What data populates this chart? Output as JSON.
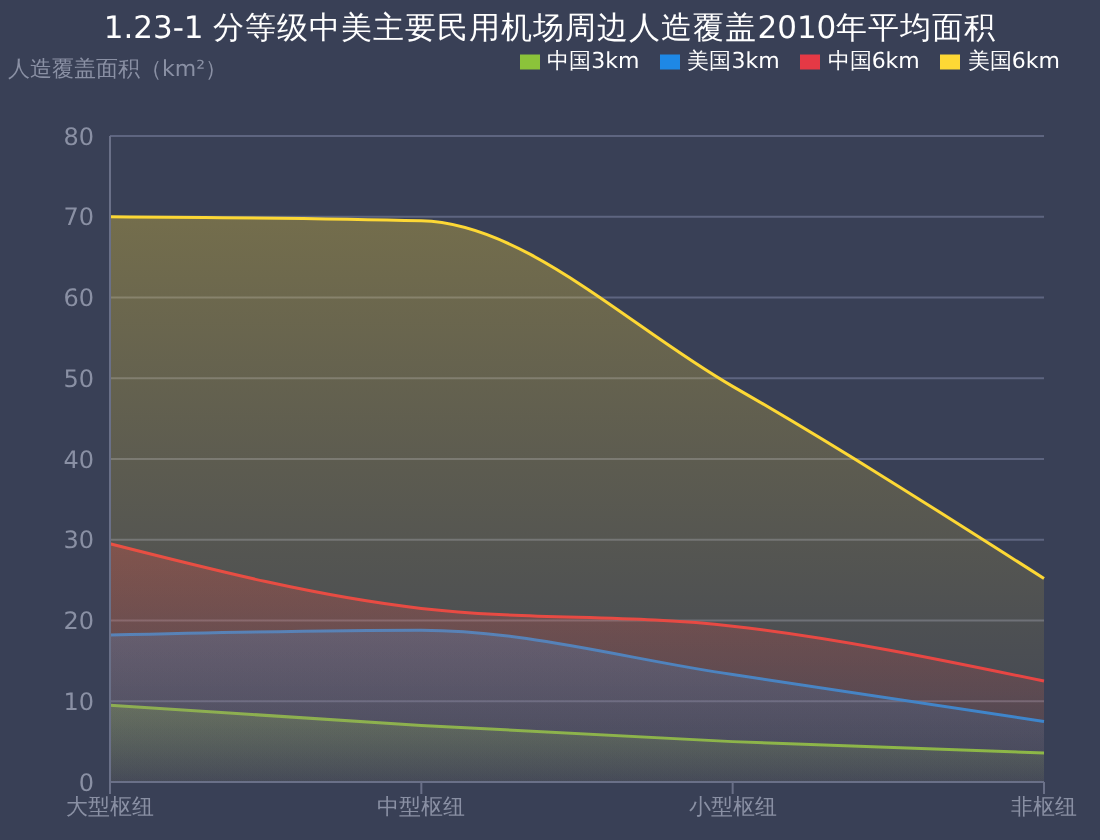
{
  "chart_data": {
    "type": "area",
    "title": "1.23-1 分等级中美主要民用机场周边人造覆盖2010年平均面积",
    "ylabel": "人造覆盖面积（km²）",
    "categories": [
      "大型枢纽",
      "中型枢纽",
      "小型枢纽",
      "非枢纽"
    ],
    "series": [
      {
        "name": "中国3km",
        "color": "#8bc33a",
        "values": [
          9.5,
          7,
          5,
          3.6
        ]
      },
      {
        "name": "美国3km",
        "color": "#1e88e5",
        "values": [
          18.2,
          18.8,
          13.3,
          7.5
        ]
      },
      {
        "name": "中国6km",
        "color": "#e53945",
        "values": [
          29.5,
          21.5,
          19.3,
          12.5
        ]
      },
      {
        "name": "美国6km",
        "color": "#fdd835",
        "values": [
          70,
          69.5,
          49,
          25.2
        ]
      }
    ],
    "ylim": [
      0,
      80
    ],
    "yticks": [
      0,
      10,
      20,
      30,
      40,
      50,
      60,
      70,
      80
    ],
    "grid": "y",
    "legend": "top right",
    "marker": "none"
  }
}
